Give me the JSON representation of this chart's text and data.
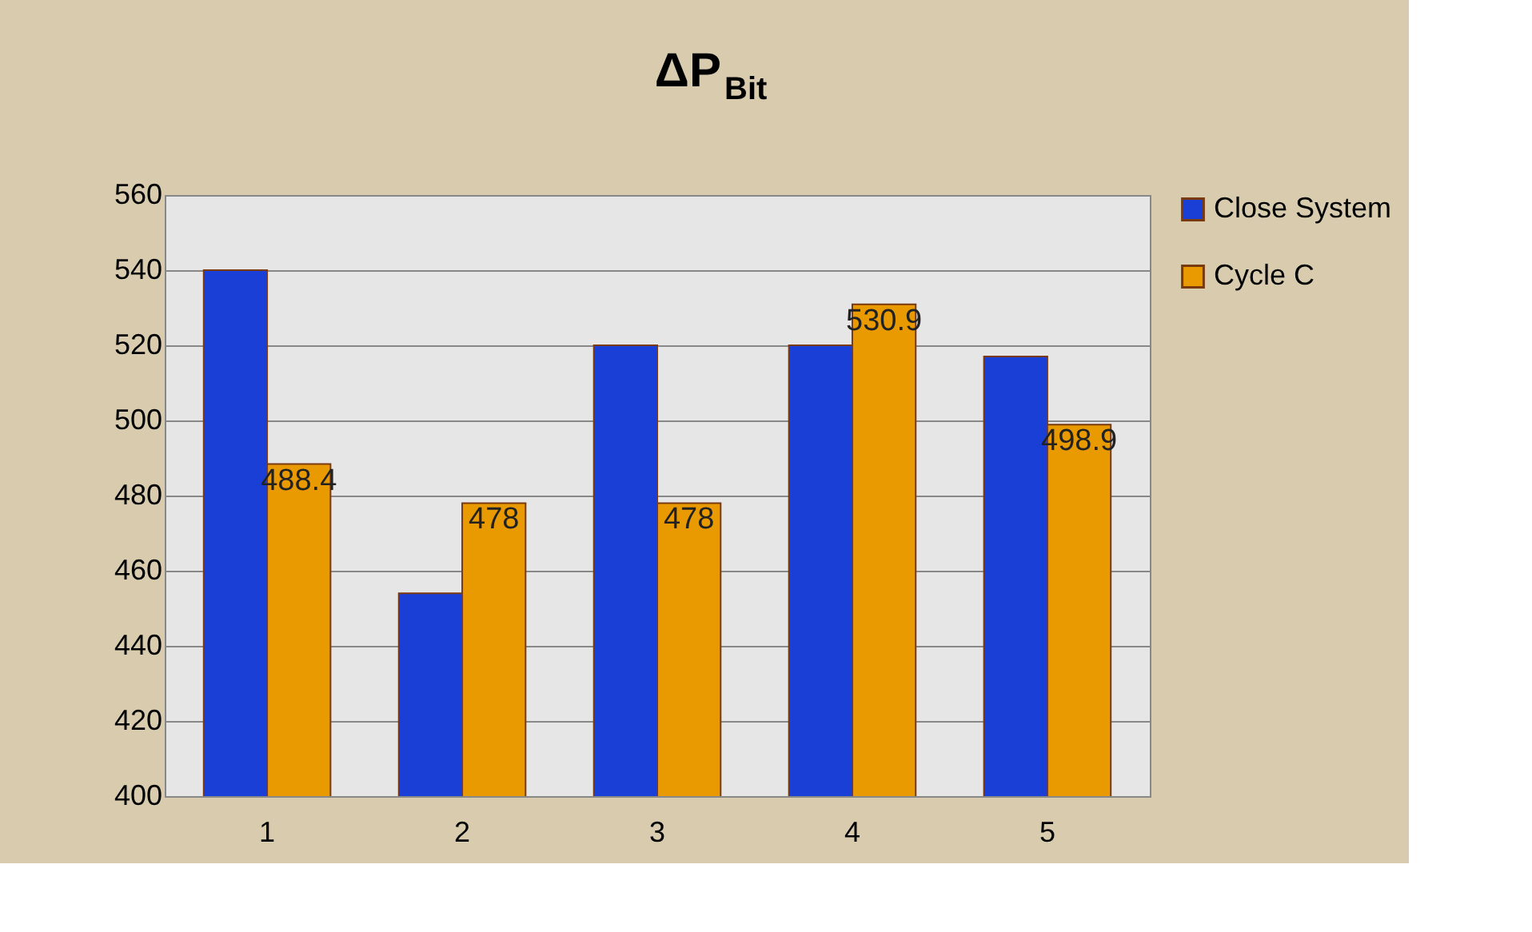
{
  "chart_data": {
    "type": "bar",
    "title": "ΔP$_{Bit}$",
    "categories": [
      "1",
      "2",
      "3",
      "4",
      "5"
    ],
    "series": [
      {
        "name": "Close System",
        "color": "#1a3fd6",
        "values": [
          540,
          454,
          520,
          520,
          517
        ]
      },
      {
        "name": "Cycle C",
        "color": "#e89a00",
        "values": [
          488.4,
          478,
          478,
          530.9,
          498.9
        ],
        "value_labels": [
          "488.4",
          "478",
          "478",
          "530.9",
          "498.9"
        ]
      }
    ],
    "ylim": [
      400,
      560
    ],
    "yticks": [
      400,
      420,
      440,
      460,
      480,
      500,
      520,
      540,
      560
    ],
    "grid": "y",
    "legend": "right"
  }
}
